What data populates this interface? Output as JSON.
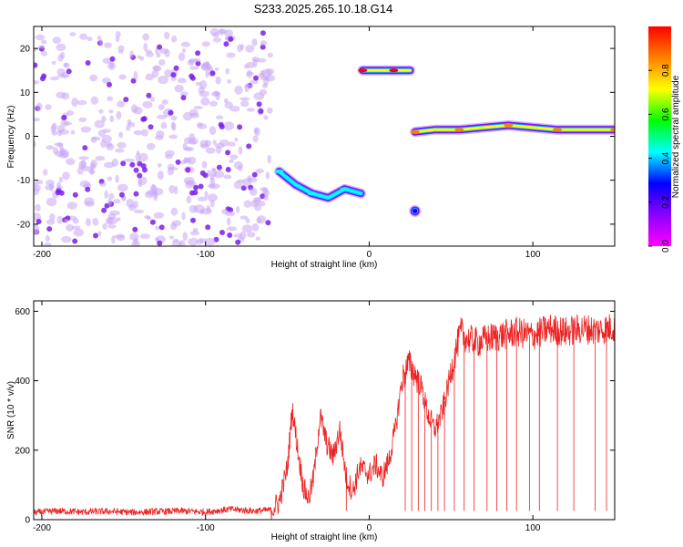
{
  "figure": {
    "title": "S233.2025.265.10.18.G14"
  },
  "chart_data": [
    {
      "type": "heatmap",
      "xlabel": "Height of straight line (km)",
      "ylabel": "Frequency (Hz)",
      "xlim": [
        -205,
        150
      ],
      "ylim": [
        -25,
        25
      ],
      "xticks": [
        -200,
        -100,
        0,
        100
      ],
      "yticks": [
        -20,
        -10,
        0,
        10,
        20
      ],
      "colorbar": {
        "label": "Normalized spectral amplitude",
        "range": [
          0,
          1
        ],
        "ticks": [
          "0.0",
          "0.2",
          "0.4",
          "0.6",
          "0.8"
        ],
        "colormap": [
          "#ff00ff",
          "#8a00ff",
          "#0000ff",
          "#00ffff",
          "#00ff00",
          "#ffff00",
          "#ff8000",
          "#ff0000"
        ]
      },
      "regions": [
        {
          "name": "noise",
          "x_range": [
            -205,
            -60
          ],
          "y_range": [
            -25,
            24
          ],
          "amplitude": 0.1
        },
        {
          "name": "track-low",
          "points": [
            [
              -55,
              -8
            ],
            [
              -45,
              -11
            ],
            [
              -35,
              -13
            ],
            [
              -25,
              -14
            ],
            [
              -15,
              -12
            ],
            [
              -5,
              -13
            ]
          ],
          "peak_amplitude": 0.5
        },
        {
          "name": "track-high",
          "points": [
            [
              -4,
              15
            ],
            [
              5,
              15
            ],
            [
              15,
              15
            ],
            [
              25,
              15
            ]
          ],
          "peak_amplitude": 1.0
        },
        {
          "name": "spot",
          "points": [
            [
              28,
              -17
            ]
          ],
          "peak_amplitude": 0.3
        },
        {
          "name": "track-main",
          "points": [
            [
              28,
              1
            ],
            [
              40,
              1.5
            ],
            [
              55,
              1.5
            ],
            [
              70,
              2
            ],
            [
              85,
              2.5
            ],
            [
              100,
              2
            ],
            [
              115,
              1.5
            ],
            [
              130,
              1.5
            ],
            [
              150,
              1.5
            ]
          ],
          "peak_amplitude": 0.9
        }
      ]
    },
    {
      "type": "line",
      "xlabel": "Height of straight line (km)",
      "ylabel": "SNR (10 * v/v)",
      "xlim": [
        -205,
        150
      ],
      "ylim": [
        0,
        630
      ],
      "xticks": [
        -200,
        -100,
        0,
        100
      ],
      "yticks": [
        0,
        200,
        400,
        600
      ],
      "color": "#ee2222",
      "series": [
        {
          "x": [
            -205,
            -190,
            -175,
            -160,
            -145,
            -130,
            -115,
            -100,
            -85,
            -70,
            -60,
            -55,
            -50,
            -47,
            -45,
            -43,
            -40,
            -37,
            -34,
            -30,
            -26,
            -22,
            -18,
            -14,
            -10,
            -6,
            -2,
            0,
            4,
            8,
            12,
            16,
            20,
            24,
            28,
            32,
            36,
            40,
            44,
            48,
            52,
            56,
            60,
            66,
            72,
            80,
            90,
            100,
            110,
            120,
            130,
            140,
            150
          ],
          "y": [
            20,
            25,
            22,
            24,
            21,
            23,
            25,
            22,
            30,
            25,
            28,
            50,
            150,
            320,
            250,
            180,
            90,
            60,
            120,
            300,
            220,
            180,
            260,
            120,
            80,
            150,
            140,
            130,
            160,
            120,
            170,
            260,
            400,
            450,
            420,
            380,
            300,
            260,
            300,
            380,
            470,
            540,
            520,
            510,
            520,
            530,
            540,
            530,
            550,
            540,
            550,
            545,
            555
          ]
        }
      ],
      "dropouts": [
        -14,
        22,
        26,
        30,
        34,
        38,
        42,
        46,
        52,
        58,
        64,
        72,
        78,
        84,
        90,
        98,
        104,
        115,
        125,
        138,
        145
      ]
    }
  ]
}
